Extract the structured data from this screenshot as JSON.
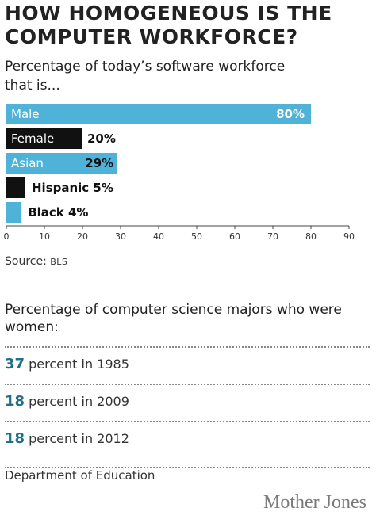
{
  "header": {
    "title": "HOW HOMOGENEOUS IS THE COMPUTER WORKFORCE?",
    "subtitle": "Percentage of today’s software workforce that is..."
  },
  "chart_data": {
    "type": "bar",
    "orientation": "horizontal",
    "categories": [
      "Male",
      "Female",
      "Asian",
      "Hispanic",
      "Black"
    ],
    "values": [
      80,
      20,
      29,
      5,
      4
    ],
    "value_labels": [
      "80%",
      "20%",
      "29%",
      "5%",
      "4%"
    ],
    "bar_colors": [
      "#4fb3d9",
      "#111111",
      "#4fb3d9",
      "#111111",
      "#4fb3d9"
    ],
    "xlim": [
      0,
      90
    ],
    "xticks": [
      0,
      10,
      20,
      30,
      40,
      50,
      60,
      70,
      80,
      90
    ],
    "grid": false
  },
  "source": {
    "prefix": "Source: ",
    "name": "BLS"
  },
  "section2": {
    "heading": "Percentage of computer science majors who were women:",
    "stats": [
      {
        "number": "37",
        "text": " percent in 1985"
      },
      {
        "number": "18",
        "text": " percent in 2009"
      },
      {
        "number": "18",
        "text": " percent in 2012"
      }
    ],
    "source": "Department of Education"
  },
  "brand": "Mother Jones",
  "colors": {
    "accent": "#4fb3d9",
    "dark": "#111111",
    "stat_number": "#1f6f8b"
  }
}
